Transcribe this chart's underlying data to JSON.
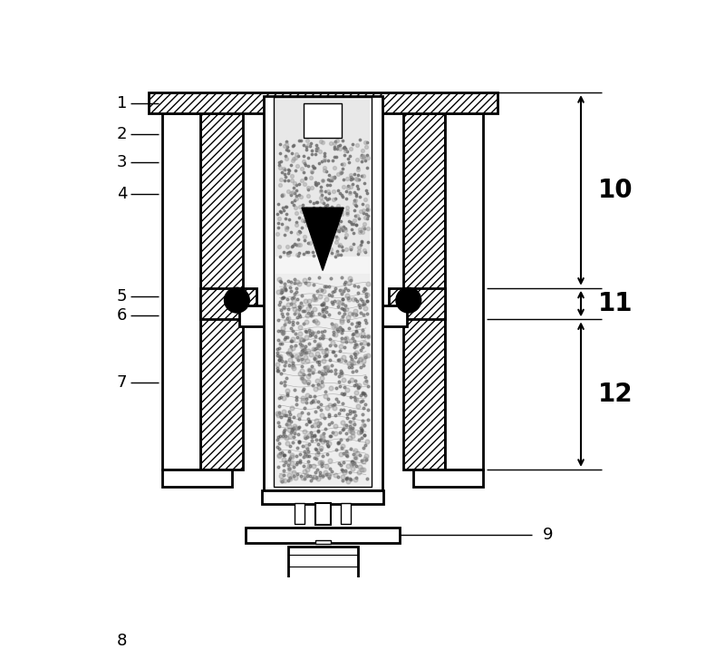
{
  "bg_color": "#ffffff",
  "fig_width": 8.0,
  "fig_height": 7.16
}
